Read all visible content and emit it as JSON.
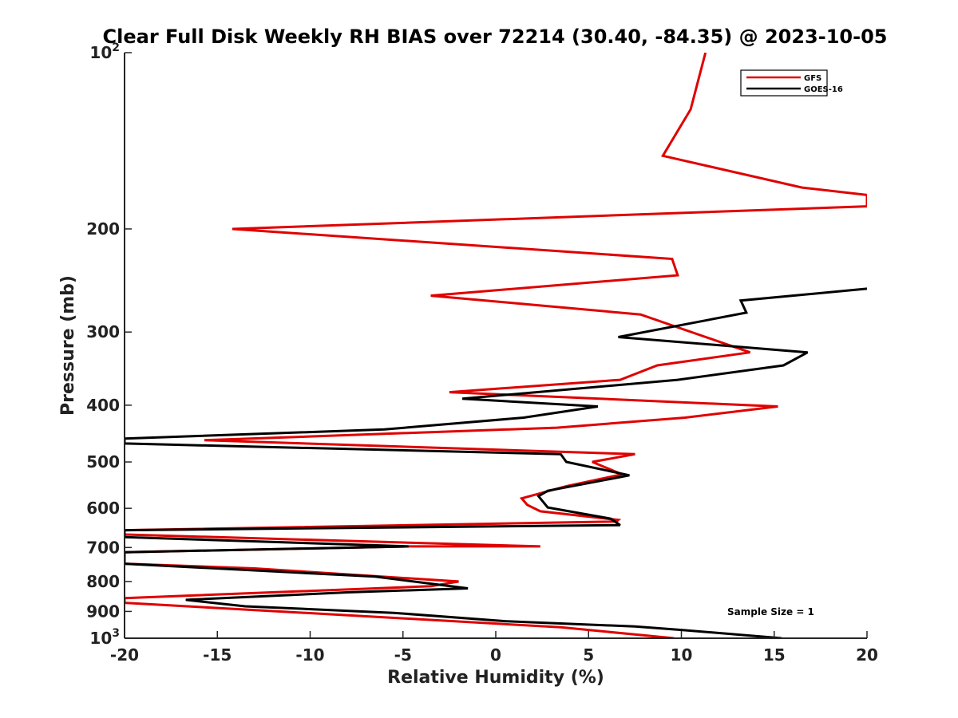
{
  "chart_data": {
    "type": "line",
    "title": "Clear Full Disk Weekly RH BIAS over 72214 (30.40, -84.35) @ 2023-10-05",
    "xlabel": "Relative Humidity (%)",
    "ylabel": "Pressure (mb)",
    "xlim": [
      -20,
      20
    ],
    "ylim": [
      100,
      1000
    ],
    "yscale": "log",
    "y_reversed": true,
    "x_ticks": [
      "-20",
      "-15",
      "-10",
      "-5",
      "0",
      "5",
      "10",
      "15",
      "20"
    ],
    "y_ticks": [
      {
        "value": 100,
        "label": "10",
        "sup": "2"
      },
      {
        "value": 200,
        "label": "200",
        "sup": ""
      },
      {
        "value": 300,
        "label": "300",
        "sup": ""
      },
      {
        "value": 400,
        "label": "400",
        "sup": ""
      },
      {
        "value": 500,
        "label": "500",
        "sup": ""
      },
      {
        "value": 600,
        "label": "600",
        "sup": ""
      },
      {
        "value": 700,
        "label": "700",
        "sup": ""
      },
      {
        "value": 800,
        "label": "800",
        "sup": ""
      },
      {
        "value": 900,
        "label": "900",
        "sup": ""
      },
      {
        "value": 1000,
        "label": "10",
        "sup": "3"
      }
    ],
    "legend_position": "top-right",
    "annotation": "Sample Size = 1",
    "series": [
      {
        "name": "GFS",
        "color": "#e00000",
        "points": [
          [
            11.3,
            100
          ],
          [
            10.5,
            125
          ],
          [
            9.0,
            150
          ],
          [
            16.5,
            170
          ],
          [
            20.0,
            175
          ],
          [
            20.0,
            183
          ],
          [
            -14.2,
            200
          ],
          [
            9.5,
            225
          ],
          [
            9.8,
            240
          ],
          [
            -3.5,
            260
          ],
          [
            7.8,
            280
          ],
          [
            13.7,
            325
          ],
          [
            8.7,
            342
          ],
          [
            6.7,
            362
          ],
          [
            -2.5,
            380
          ],
          [
            15.2,
            402
          ],
          [
            10.2,
            420
          ],
          [
            3.3,
            437
          ],
          [
            -15.7,
            459
          ],
          [
            7.5,
            485
          ],
          [
            5.2,
            500
          ],
          [
            6.8,
            525
          ],
          [
            3.8,
            550
          ],
          [
            1.4,
            577
          ],
          [
            1.7,
            592
          ],
          [
            2.4,
            607
          ],
          [
            6.6,
            628
          ],
          [
            6.5,
            632
          ],
          [
            -20.0,
            654
          ],
          [
            -20.0,
            665
          ],
          [
            2.4,
            697
          ],
          [
            -4.6,
            697
          ],
          [
            -20.0,
            713
          ],
          [
            -20.0,
            746
          ],
          [
            -13.0,
            760
          ],
          [
            -2.0,
            800
          ],
          [
            -3.5,
            815
          ],
          [
            -20.0,
            854
          ],
          [
            -20.0,
            870
          ],
          [
            -5.0,
            925
          ],
          [
            3.5,
            958
          ],
          [
            9.6,
            1000
          ]
        ]
      },
      {
        "name": "GOES-16",
        "color": "#000000",
        "points": [
          [
            20.0,
            253
          ],
          [
            13.2,
            265
          ],
          [
            13.5,
            278
          ],
          [
            6.6,
            306
          ],
          [
            16.8,
            325
          ],
          [
            15.5,
            342
          ],
          [
            9.8,
            362
          ],
          [
            -1.8,
            390
          ],
          [
            5.5,
            402
          ],
          [
            1.5,
            420
          ],
          [
            -6.0,
            440
          ],
          [
            -20.0,
            456
          ],
          [
            -20.0,
            465
          ],
          [
            3.5,
            485
          ],
          [
            3.8,
            500
          ],
          [
            7.2,
            527
          ],
          [
            2.8,
            560
          ],
          [
            2.3,
            572
          ],
          [
            2.8,
            598
          ],
          [
            6.2,
            625
          ],
          [
            6.7,
            641
          ],
          [
            -20.0,
            654
          ],
          [
            -20.0,
            672
          ],
          [
            -4.7,
            697
          ],
          [
            -20.0,
            713
          ],
          [
            -20.0,
            746
          ],
          [
            -6.5,
            785
          ],
          [
            -1.5,
            822
          ],
          [
            -8.0,
            835
          ],
          [
            -16.7,
            860
          ],
          [
            -13.5,
            882
          ],
          [
            -5.5,
            905
          ],
          [
            0.5,
            935
          ],
          [
            7.5,
            955
          ],
          [
            10.0,
            968
          ],
          [
            15.4,
            1000
          ]
        ]
      }
    ]
  }
}
